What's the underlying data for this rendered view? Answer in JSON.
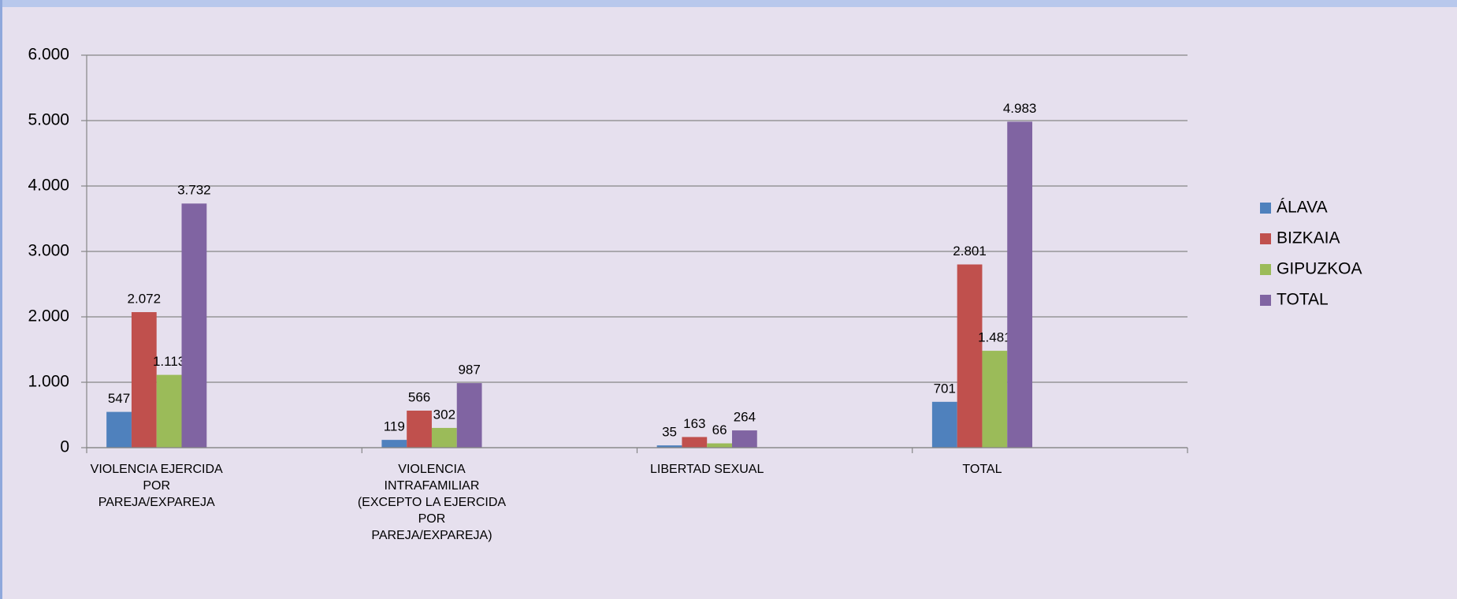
{
  "chart_data": {
    "type": "bar",
    "categories": [
      [
        "VIOLENCIA EJERCIDA",
        "POR",
        "PAREJA/EXPAREJA"
      ],
      [
        "VIOLENCIA",
        "INTRAFAMILIAR",
        "(EXCEPTO LA EJERCIDA",
        "POR",
        "PAREJA/EXPAREJA)"
      ],
      [
        "LIBERTAD SEXUAL"
      ],
      [
        "TOTAL"
      ]
    ],
    "series": [
      {
        "name": "ÁLAVA",
        "color": "#4f81bd",
        "values": [
          547,
          119,
          35,
          701
        ],
        "value_labels": [
          "547",
          "119",
          "35",
          "701"
        ]
      },
      {
        "name": "BIZKAIA",
        "color": "#c0504d",
        "values": [
          2072,
          566,
          163,
          2801
        ],
        "value_labels": [
          "2.072",
          "566",
          "163",
          "2.801"
        ]
      },
      {
        "name": "GIPUZKOA",
        "color": "#9bbb59",
        "values": [
          1113,
          302,
          66,
          1481
        ],
        "value_labels": [
          "1.113",
          "302",
          "66",
          "1.481"
        ]
      },
      {
        "name": "TOTAL",
        "color": "#8064a2",
        "values": [
          3732,
          987,
          264,
          4983
        ],
        "value_labels": [
          "3.732",
          "987",
          "264",
          "4.983"
        ]
      }
    ],
    "ylim": [
      0,
      6000
    ],
    "yticks": [
      0,
      {
        "value": 1000,
        "label": "1.000"
      },
      {
        "value": 2000,
        "label": "2.000"
      },
      {
        "value": 3000,
        "label": "3.000"
      },
      {
        "value": 4000,
        "label": "4.000"
      },
      {
        "value": 5000,
        "label": "5.000"
      },
      {
        "value": 6000,
        "label": "6.000"
      }
    ],
    "grid": true,
    "legend": "right"
  }
}
